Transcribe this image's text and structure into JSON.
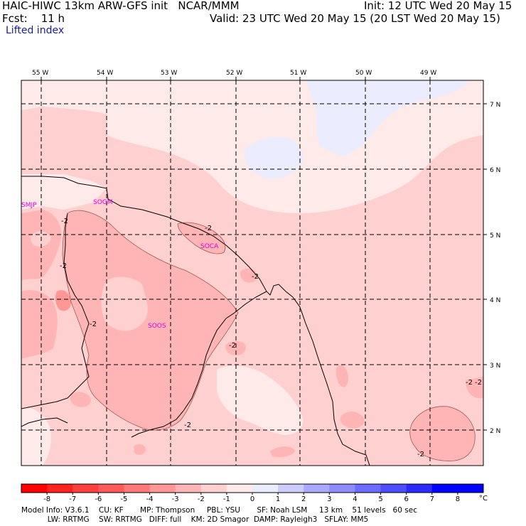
{
  "header": {
    "title_left": "HAIC-HIWC 13km ARW-GFS init   NCAR/MMM",
    "init": "Init: 12 UTC Wed 20 May 15",
    "fcst": "Fcst:    11 h",
    "valid": "Valid: 23 UTC Wed 20 May 15 (20 LST Wed 20 May 15)",
    "field": "Lifted index"
  },
  "axes": {
    "lon_labels": [
      "55 W",
      "54 W",
      "53 W",
      "52 W",
      "51 W",
      "50 W",
      "49 W"
    ],
    "lat_labels": [
      "7 N",
      "6 N",
      "5 N",
      "4 N",
      "3 N",
      "2 N"
    ]
  },
  "stations": [
    "SMJP",
    "SOGM",
    "SOCA",
    "SOOS"
  ],
  "contour_labels": [
    "-2",
    "-2",
    "-2",
    "-2",
    "-2",
    "-2",
    "-2",
    "-2",
    "-2",
    "-2"
  ],
  "colorbar": {
    "ticks": [
      "-8",
      "-7",
      "-6",
      "-5",
      "-4",
      "-3",
      "-2",
      "-1",
      "0",
      "1",
      "2",
      "3",
      "4",
      "5",
      "6",
      "7",
      "8"
    ],
    "unit": "°C",
    "colors": [
      "#ff0000",
      "#ff2020",
      "#ff3f3f",
      "#ff5a5a",
      "#ff7777",
      "#ff9797",
      "#ffb5b5",
      "#ffd0d0",
      "#ffeaea",
      "#ececff",
      "#ccccff",
      "#a9a9ff",
      "#8c8cff",
      "#6b6bff",
      "#4d4dff",
      "#2a2aff",
      "#0000ff"
    ]
  },
  "footer": {
    "line1": "Model Info: V3.6.1    CU: KF       MP: Thompson     PBL: YSU       SF: Noah LSM     13 km    51 levels   60 sec",
    "line2": "           LW: RRTMG    SW: RRTMG   DIFF: full    KM: 2D Smagor  DAMP: Rayleigh3   SFLAY: MM5"
  }
}
